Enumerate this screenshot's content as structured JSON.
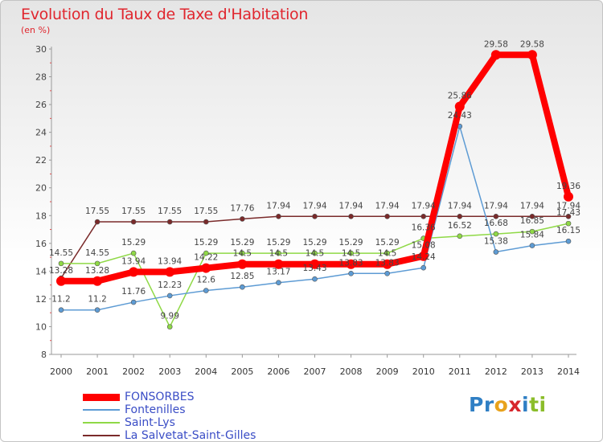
{
  "title": "Evolution du Taux de Taxe d'Habitation",
  "unit_label": "(en %)",
  "logo": {
    "text": "Proxiti",
    "letters": [
      {
        "ch": "P",
        "color": "#2f7fc4"
      },
      {
        "ch": "r",
        "color": "#2f7fc4"
      },
      {
        "ch": "o",
        "color": "#e8a21c"
      },
      {
        "ch": "x",
        "color": "#d7262c"
      },
      {
        "ch": "i",
        "color": "#2f7fc4"
      },
      {
        "ch": "t",
        "color": "#8bbd2a"
      },
      {
        "ch": "i",
        "color": "#8bbd2a"
      }
    ]
  },
  "chart_data": {
    "type": "line",
    "title": "Evolution du Taux de Taxe d'Habitation",
    "ylabel": "(en %)",
    "xlabel": "",
    "ylim": [
      8,
      30
    ],
    "yticks": [
      8,
      10,
      12,
      14,
      16,
      18,
      20,
      22,
      24,
      26,
      28,
      30
    ],
    "x": [
      "2000",
      "2001",
      "2002",
      "2003",
      "2004",
      "2005",
      "2006",
      "2007",
      "2008",
      "2009",
      "2010",
      "2011",
      "2012",
      "2013",
      "2014"
    ],
    "grid": false,
    "legend_position": "bottom-left",
    "series": [
      {
        "name": "FONSORBES",
        "color": "#ff0000",
        "thick": true,
        "values": [
          13.28,
          13.28,
          13.94,
          13.94,
          14.22,
          14.5,
          14.5,
          14.5,
          14.5,
          14.5,
          15.08,
          25.86,
          29.58,
          29.58,
          19.36
        ],
        "labels": [
          "13.28",
          "13.28",
          "13.94",
          "13.94",
          "14.22",
          "14.5",
          "14.5",
          "14.5",
          "14.5",
          "14.5",
          "15.08",
          "25.86",
          "29.58",
          "29.58",
          "19.36"
        ]
      },
      {
        "name": "Fontenilles",
        "color": "#5d9bd4",
        "thick": false,
        "values": [
          11.2,
          11.2,
          11.76,
          12.23,
          12.6,
          12.85,
          13.17,
          13.43,
          13.83,
          13.83,
          14.24,
          24.43,
          15.38,
          15.84,
          16.15
        ],
        "labels": [
          "11.2",
          "11.2",
          "11.76",
          "12.23",
          "12.6",
          "12.85",
          "13.17",
          "13.43",
          "13.83",
          "13.83",
          "14.24",
          "24.43",
          "15.38",
          "15.84",
          "16.15"
        ]
      },
      {
        "name": "Saint-Lys",
        "color": "#8fd946",
        "thick": false,
        "values": [
          14.55,
          14.55,
          15.29,
          9.99,
          15.29,
          15.29,
          15.29,
          15.29,
          15.29,
          15.29,
          16.36,
          16.52,
          16.68,
          16.85,
          17.43
        ],
        "labels": [
          "14.55",
          "14.55",
          "15.29",
          "9.99",
          "15.29",
          "15.29",
          "15.29",
          "15.29",
          "15.29",
          "15.29",
          "16.36",
          "16.52",
          "16.68",
          "16.85",
          "17.43"
        ]
      },
      {
        "name": "La Salvetat-Saint-Gilles",
        "color": "#7a2a2a",
        "thick": false,
        "values": [
          13.5,
          17.55,
          17.55,
          17.55,
          17.55,
          17.76,
          17.94,
          17.94,
          17.94,
          17.94,
          17.94,
          17.94,
          17.94,
          17.94,
          17.94
        ],
        "labels": [
          "",
          "17.55",
          "17.55",
          "17.55",
          "17.55",
          "17.76",
          "17.94",
          "17.94",
          "17.94",
          "17.94",
          "17.94",
          "17.94",
          "17.94",
          "17.94",
          "17.94"
        ]
      }
    ]
  }
}
